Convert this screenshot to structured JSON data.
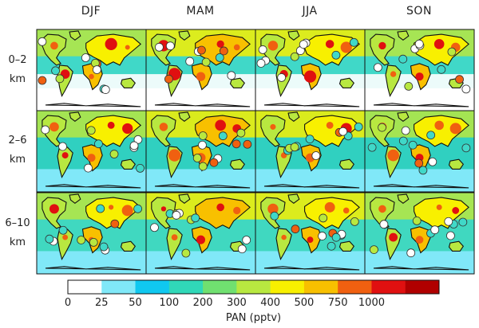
{
  "chart_data": {
    "type": "heatmap",
    "title": "",
    "columns": [
      "DJF",
      "MAM",
      "JJA",
      "SON"
    ],
    "rows": [
      {
        "line1": "0–2",
        "line2": "km"
      },
      {
        "line1": "2–6",
        "line2": "km"
      },
      {
        "line1": "6–10",
        "line2": "km"
      }
    ],
    "colorbar": {
      "label": "PAN (pptv)",
      "ticks": [
        "0",
        "25",
        "50",
        "100",
        "200",
        "300",
        "400",
        "500",
        "750",
        "1000"
      ],
      "colors": [
        "#ffffff",
        "#80e8f8",
        "#10c8f0",
        "#30d8b8",
        "#70e070",
        "#b8e840",
        "#f8f000",
        "#f8c000",
        "#f06010",
        "#e01010",
        "#b00000"
      ]
    },
    "colors": {
      "ocean_low": "#40d8c8",
      "land_coast": "#111111"
    }
  }
}
